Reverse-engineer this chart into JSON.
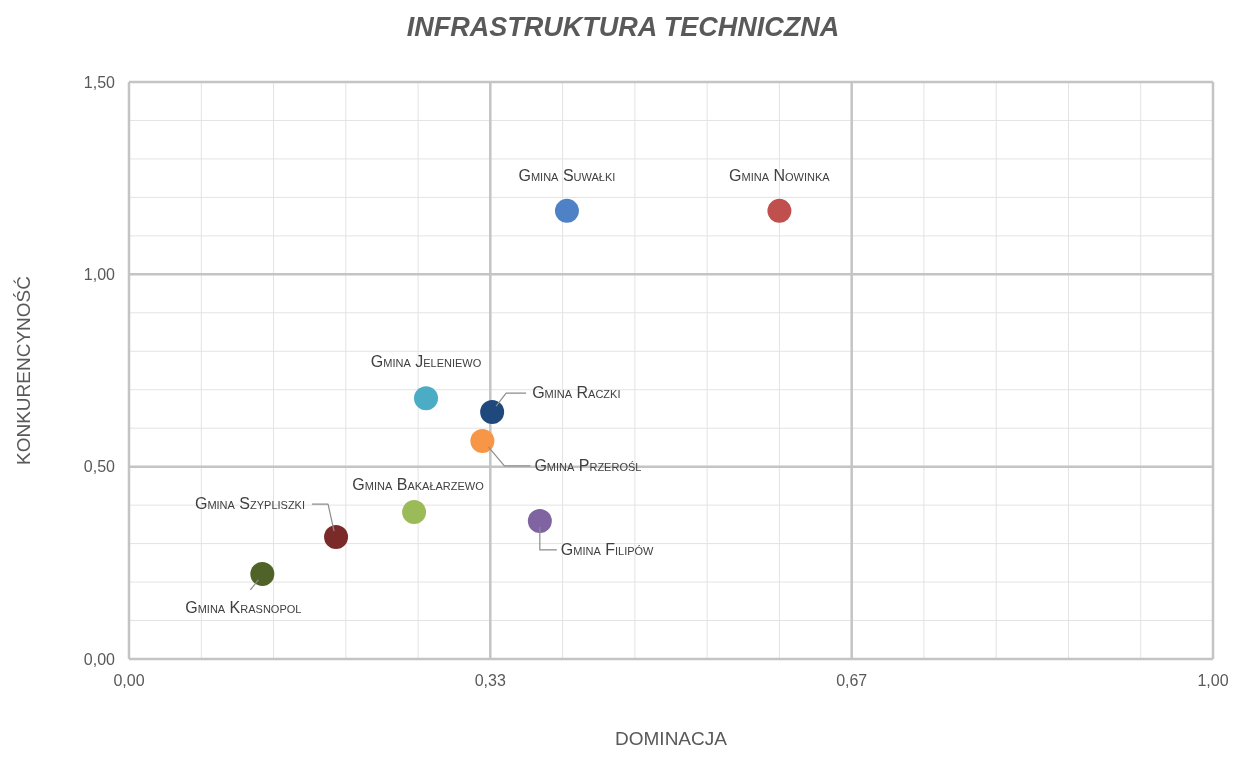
{
  "chart_data": {
    "type": "scatter",
    "title": "INFRASTRUKTURA TECHNICZNA",
    "xlabel": "DOMINACJA",
    "ylabel": "KONKURENCYNOŚĆ",
    "marker": "circle",
    "grid": true,
    "xlim": [
      0,
      1
    ],
    "ylim": [
      0,
      1.5
    ],
    "xticks": [
      {
        "value": 0,
        "label": "0,00"
      },
      {
        "value": 0.0667,
        "label": null
      },
      {
        "value": 0.1333,
        "label": null
      },
      {
        "value": 0.2,
        "label": null
      },
      {
        "value": 0.2667,
        "label": null
      },
      {
        "value": 0.3333,
        "label": "0,33"
      },
      {
        "value": 0.4,
        "label": null
      },
      {
        "value": 0.4667,
        "label": null
      },
      {
        "value": 0.5333,
        "label": null
      },
      {
        "value": 0.6,
        "label": null
      },
      {
        "value": 0.6667,
        "label": "0,67"
      },
      {
        "value": 0.7333,
        "label": null
      },
      {
        "value": 0.8,
        "label": null
      },
      {
        "value": 0.8667,
        "label": null
      },
      {
        "value": 0.9333,
        "label": null
      },
      {
        "value": 1,
        "label": "1,00"
      }
    ],
    "yticks": [
      {
        "value": 0,
        "label": "0,00"
      },
      {
        "value": 0.1,
        "label": null
      },
      {
        "value": 0.2,
        "label": null
      },
      {
        "value": 0.3,
        "label": null
      },
      {
        "value": 0.4,
        "label": null
      },
      {
        "value": 0.5,
        "label": "0,50"
      },
      {
        "value": 0.6,
        "label": null
      },
      {
        "value": 0.7,
        "label": null
      },
      {
        "value": 0.8,
        "label": null
      },
      {
        "value": 0.9,
        "label": null
      },
      {
        "value": 1,
        "label": "1,00"
      },
      {
        "value": 1.1,
        "label": null
      },
      {
        "value": 1.2,
        "label": null
      },
      {
        "value": 1.3,
        "label": null
      },
      {
        "value": 1.4,
        "label": null
      },
      {
        "value": 1.5,
        "label": "1,50"
      }
    ],
    "series": [
      {
        "name": "Gmina Suwałki",
        "color": "#4f81c7",
        "x": [
          0.404
        ],
        "values": [
          1.165
        ]
      },
      {
        "name": "Gmina Nowinka",
        "color": "#c0504d",
        "x": [
          0.6
        ],
        "values": [
          1.165
        ]
      },
      {
        "name": "Gmina Jeleniewo",
        "color": "#4bacc6",
        "x": [
          0.274
        ],
        "values": [
          0.678
        ]
      },
      {
        "name": "Gmina Raczki",
        "color": "#1f497d",
        "x": [
          0.335
        ],
        "values": [
          0.642
        ]
      },
      {
        "name": "Gmina Przerośl",
        "color": "#f79646",
        "x": [
          0.326
        ],
        "values": [
          0.567
        ]
      },
      {
        "name": "Gmina Bakałarzewo",
        "color": "#9bbb59",
        "x": [
          0.263
        ],
        "values": [
          0.382
        ]
      },
      {
        "name": "Gmina Filipów",
        "color": "#8064a2",
        "x": [
          0.379
        ],
        "values": [
          0.359
        ]
      },
      {
        "name": "Gmina Szypliszki",
        "color": "#7b2a2a",
        "x": [
          0.191
        ],
        "values": [
          0.317
        ]
      },
      {
        "name": "Gmina Krasnopol",
        "color": "#4f6228",
        "x": [
          0.123
        ],
        "values": [
          0.221
        ]
      }
    ]
  }
}
